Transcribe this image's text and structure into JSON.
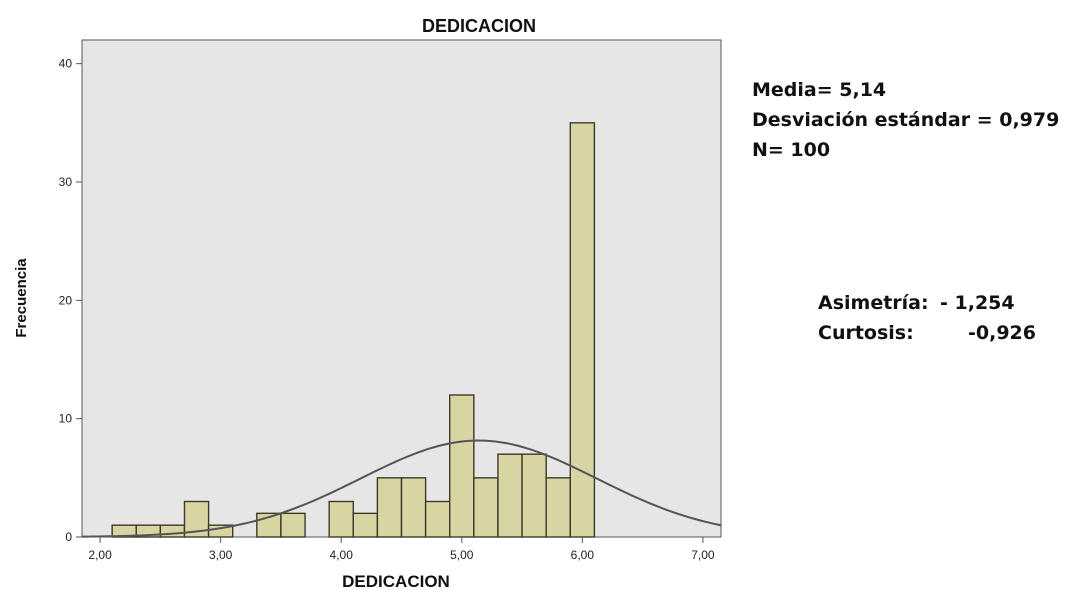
{
  "chart_data": {
    "type": "bar",
    "title": "DEDICACION",
    "xlabel": "DEDICACION",
    "ylabel": "Frecuencia",
    "xlim": [
      1.85,
      7.15
    ],
    "ylim": [
      0,
      42
    ],
    "x_ticks": [
      2,
      3,
      4,
      5,
      6,
      7
    ],
    "x_tick_labels": [
      "2,00",
      "3,00",
      "4,00",
      "5,00",
      "6,00",
      "7,00"
    ],
    "y_ticks": [
      0,
      10,
      20,
      30,
      40
    ],
    "y_tick_labels": [
      "0",
      "10",
      "20",
      "30",
      "40"
    ],
    "bin_width": 0.2,
    "bins": [
      {
        "x0": 2.1,
        "count": 1
      },
      {
        "x0": 2.3,
        "count": 1
      },
      {
        "x0": 2.5,
        "count": 1
      },
      {
        "x0": 2.7,
        "count": 3
      },
      {
        "x0": 2.9,
        "count": 1
      },
      {
        "x0": 3.3,
        "count": 2
      },
      {
        "x0": 3.5,
        "count": 2
      },
      {
        "x0": 3.9,
        "count": 3
      },
      {
        "x0": 4.1,
        "count": 2
      },
      {
        "x0": 4.3,
        "count": 5
      },
      {
        "x0": 4.5,
        "count": 5
      },
      {
        "x0": 4.7,
        "count": 3
      },
      {
        "x0": 4.9,
        "count": 12
      },
      {
        "x0": 5.1,
        "count": 5
      },
      {
        "x0": 5.3,
        "count": 7
      },
      {
        "x0": 5.5,
        "count": 7
      },
      {
        "x0": 5.7,
        "count": 5
      },
      {
        "x0": 5.9,
        "count": 35
      }
    ],
    "normal_curve": {
      "mean": 5.14,
      "sd": 0.979,
      "n": 100
    },
    "grid": false,
    "colors": {
      "bar_fill": "#d9d5a3",
      "bar_stroke": "#3a3a2a",
      "plot_bg": "#e6e6e6",
      "curve": "#555555"
    }
  },
  "stats": {
    "media": "Media= 5,14",
    "desviacion": "Desviación estándar = 0,979",
    "n": "N= 100",
    "asimetria_label": "Asimetría:",
    "asimetria_value": "- 1,254",
    "curtosis_label": "Curtosis:",
    "curtosis_value": "-0,926"
  }
}
